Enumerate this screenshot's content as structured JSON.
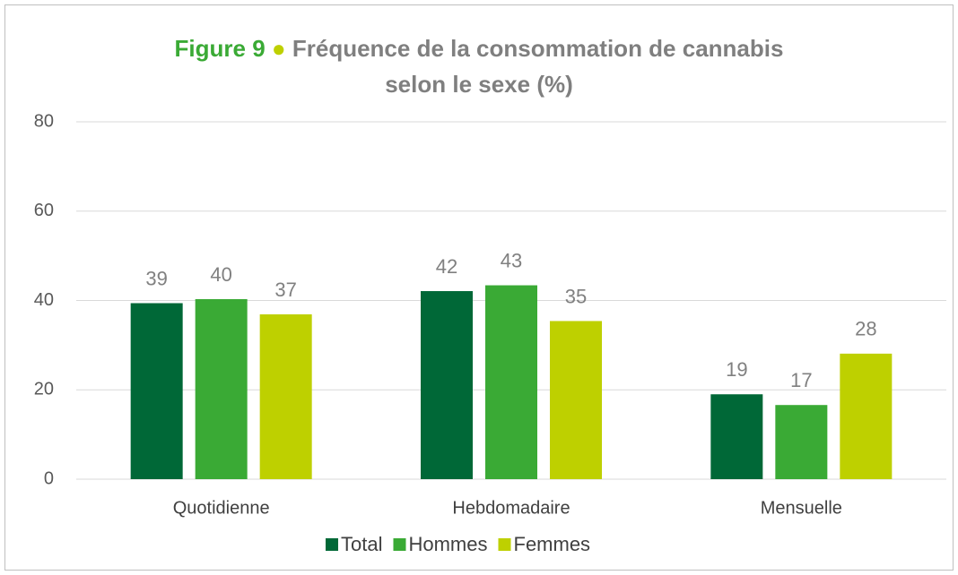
{
  "chart_data": {
    "type": "bar",
    "figure_label": "Figure 9",
    "title": "Fréquence de la consommation de cannabis selon le sexe (%)",
    "categories": [
      "Quotidienne",
      "Hebdomadaire",
      "Mensuelle"
    ],
    "series": [
      {
        "name": "Total",
        "color": "#006837",
        "values": [
          39.4,
          42.1,
          19.0
        ],
        "value_labels": [
          "39",
          "42",
          "19"
        ]
      },
      {
        "name": "Hommes",
        "color": "#3aaa35",
        "values": [
          40.3,
          43.4,
          16.6
        ],
        "value_labels": [
          "40",
          "43",
          "17"
        ]
      },
      {
        "name": "Femmes",
        "color": "#bed000",
        "values": [
          36.9,
          35.4,
          28.1
        ],
        "value_labels": [
          "37",
          "35",
          "28"
        ]
      }
    ],
    "ylim": [
      0,
      80
    ],
    "yticks": [
      0,
      20,
      40,
      60,
      80
    ],
    "grid": true,
    "legend": "bottom"
  }
}
